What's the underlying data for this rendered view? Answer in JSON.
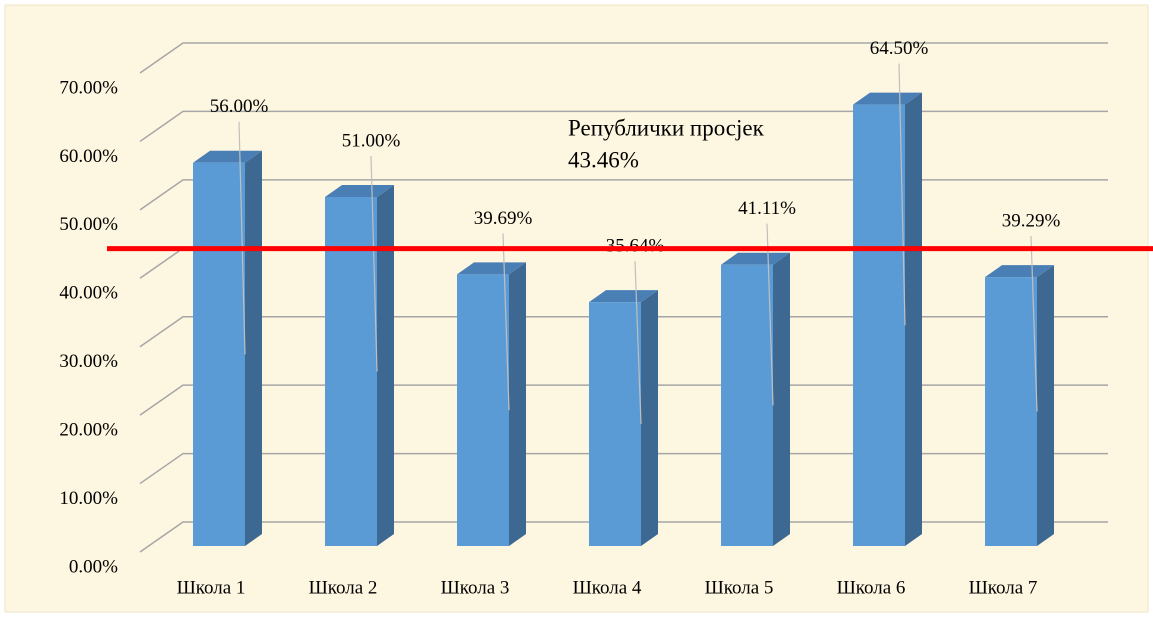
{
  "chart_data": {
    "type": "bar3d",
    "categories": [
      "Школа 1",
      "Школа 2",
      "Школа 3",
      "Школа 4",
      "Школа 5",
      "Школа 6",
      "Школа 7"
    ],
    "values": [
      56,
      51,
      39.69,
      35.64,
      41.11,
      64.5,
      39.29
    ],
    "value_labels": [
      "56.00%",
      "51.00%",
      "39.69%",
      "35.64%",
      "41.11%",
      "64.50%",
      "39.29%"
    ],
    "color": "#5b9bd5",
    "ylim": [
      0,
      70
    ],
    "yticks": [
      {
        "value": 0,
        "label": "0.00%"
      },
      {
        "value": 10,
        "label": "10.00%"
      },
      {
        "value": 20,
        "label": "20.00%"
      },
      {
        "value": 30,
        "label": "30.00%"
      },
      {
        "value": 40,
        "label": "40.00%"
      },
      {
        "value": 50,
        "label": "50.00%"
      },
      {
        "value": 60,
        "label": "60.00%"
      },
      {
        "value": 70,
        "label": "70.00%"
      }
    ],
    "grid": true,
    "reference_line": {
      "name": "Републички просјек",
      "value": 43.46,
      "label": "43.46%",
      "color": "#ff0000"
    }
  }
}
